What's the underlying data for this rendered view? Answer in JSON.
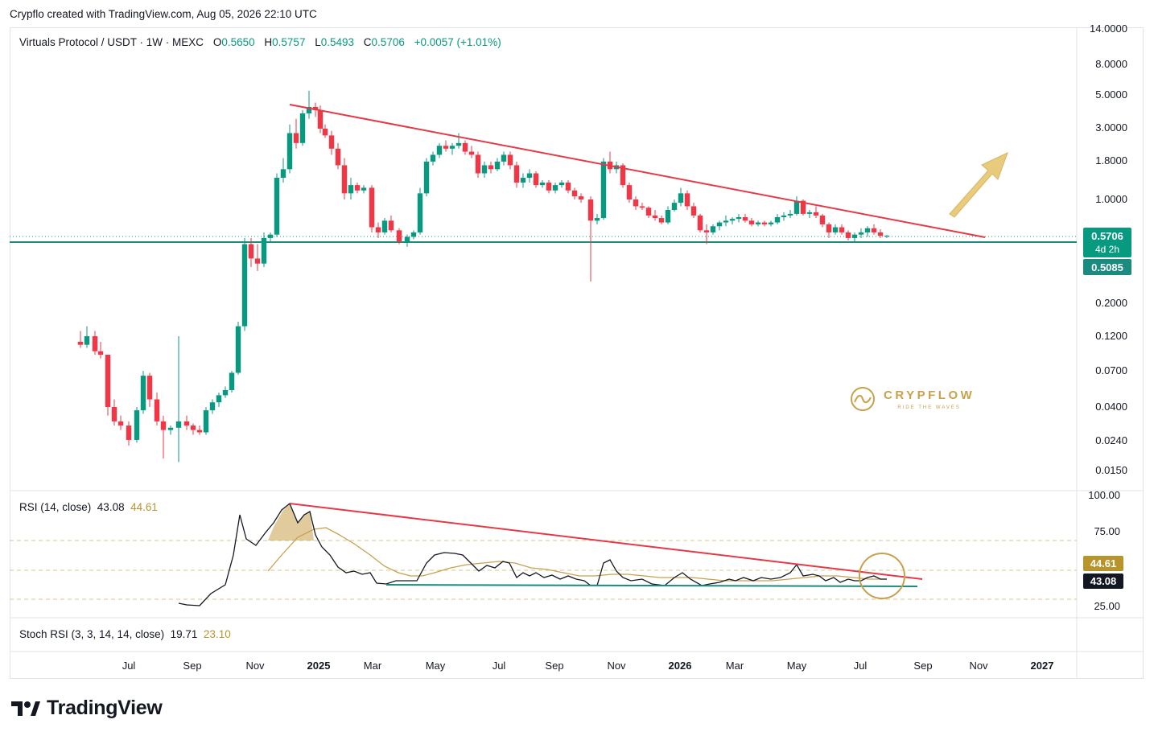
{
  "header": {
    "credit": "Crypflo created with TradingView.com, Aug 05, 2026 22:10 UTC"
  },
  "legend": {
    "symbol": "Virtuals Protocol / USDT · 1W · MEXC",
    "open_label": "O",
    "open": "0.5650",
    "high_label": "H",
    "high": "0.5757",
    "low_label": "L",
    "low": "0.5493",
    "close_label": "C",
    "close": "0.5706",
    "change": "+0.0057 (+1.01%)"
  },
  "price_badges": {
    "last_price": "0.5706",
    "countdown": "4d 2h",
    "support": "0.5085"
  },
  "rsi_legend": {
    "name": "RSI (14, close)",
    "rsi": "43.08",
    "ma": "44.61"
  },
  "stoch_legend": {
    "name": "Stoch RSI (3, 3, 14, 14, close)",
    "k": "19.71",
    "d": "23.10"
  },
  "brand": {
    "name": "CRYPFLOW",
    "tagline": "RIDE THE WAVES"
  },
  "footer": {
    "logo_text": "TradingView"
  },
  "colors": {
    "up": "#089981",
    "down": "#f23645",
    "trendline": "#e63946",
    "support": "#1b8a7f",
    "rsi_ma": "#c9a04c",
    "rsi": "#131722"
  },
  "chart_data": [
    {
      "type": "candlestick",
      "title": "Virtuals Protocol / USDT · 1W · MEXC",
      "y_scale": "log",
      "y_ticks": [
        "14.0000",
        "8.0000",
        "5.0000",
        "3.0000",
        "1.8000",
        "1.0000",
        "0.2000",
        "0.1200",
        "0.0700",
        "0.0400",
        "0.0240",
        "0.0150"
      ],
      "x_ticks": [
        "Jul",
        "Sep",
        "Nov",
        "2025",
        "Mar",
        "May",
        "Jul",
        "Sep",
        "Nov",
        "2026",
        "Mar",
        "May",
        "Jul",
        "Sep",
        "Nov",
        "2027"
      ],
      "support_level": 0.5085,
      "last_close": 0.5706,
      "trendline": {
        "from": {
          "date": "Dec 2024",
          "price": 4.2
        },
        "to": {
          "date": "Oct 2026",
          "price": 0.55
        }
      },
      "close_path": [
        {
          "date": "Jun 2024",
          "close": 0.11
        },
        {
          "date": "Jul 2024",
          "close": 0.09
        },
        {
          "date": "Aug 2024",
          "close": 0.022
        },
        {
          "date": "Sep 2024",
          "close": 0.028
        },
        {
          "date": "Oct 2024",
          "close": 0.06
        },
        {
          "date": "Nov 2024",
          "close": 0.5
        },
        {
          "date": "Dec 2024",
          "close": 3.8
        },
        {
          "date": "Jan 2025",
          "close": 2.0
        },
        {
          "date": "Feb 2025",
          "close": 1.1
        },
        {
          "date": "Mar 2025",
          "close": 0.6
        },
        {
          "date": "Apr 2025",
          "close": 0.55
        },
        {
          "date": "May 2025",
          "close": 2.2
        },
        {
          "date": "Jun 2025",
          "close": 1.5
        },
        {
          "date": "Jul 2025",
          "close": 1.6
        },
        {
          "date": "Aug 2025",
          "close": 1.1
        },
        {
          "date": "Sep 2025",
          "close": 0.85
        },
        {
          "date": "Oct 2025",
          "close": 1.7
        },
        {
          "date": "Nov 2025",
          "close": 0.9
        },
        {
          "date": "Dec 2025",
          "close": 1.0
        },
        {
          "date": "Jan 2026",
          "close": 0.75
        },
        {
          "date": "Feb 2026",
          "close": 0.62
        },
        {
          "date": "Mar 2026",
          "close": 0.75
        },
        {
          "date": "Apr 2026",
          "close": 0.68
        },
        {
          "date": "May 2026",
          "close": 0.85
        },
        {
          "date": "Jun 2026",
          "close": 0.58
        },
        {
          "date": "Jul 2026",
          "close": 0.62
        },
        {
          "date": "Aug 2026",
          "close": 0.5706
        }
      ]
    },
    {
      "type": "line",
      "title": "RSI (14, close)",
      "y_ticks": [
        "100.00",
        "75.00",
        "25.00"
      ],
      "ylim": [
        0,
        100
      ],
      "bands": [
        30,
        50,
        70
      ],
      "series": [
        {
          "name": "RSI",
          "last": 43.08
        },
        {
          "name": "MA",
          "last": 44.61
        }
      ]
    }
  ]
}
